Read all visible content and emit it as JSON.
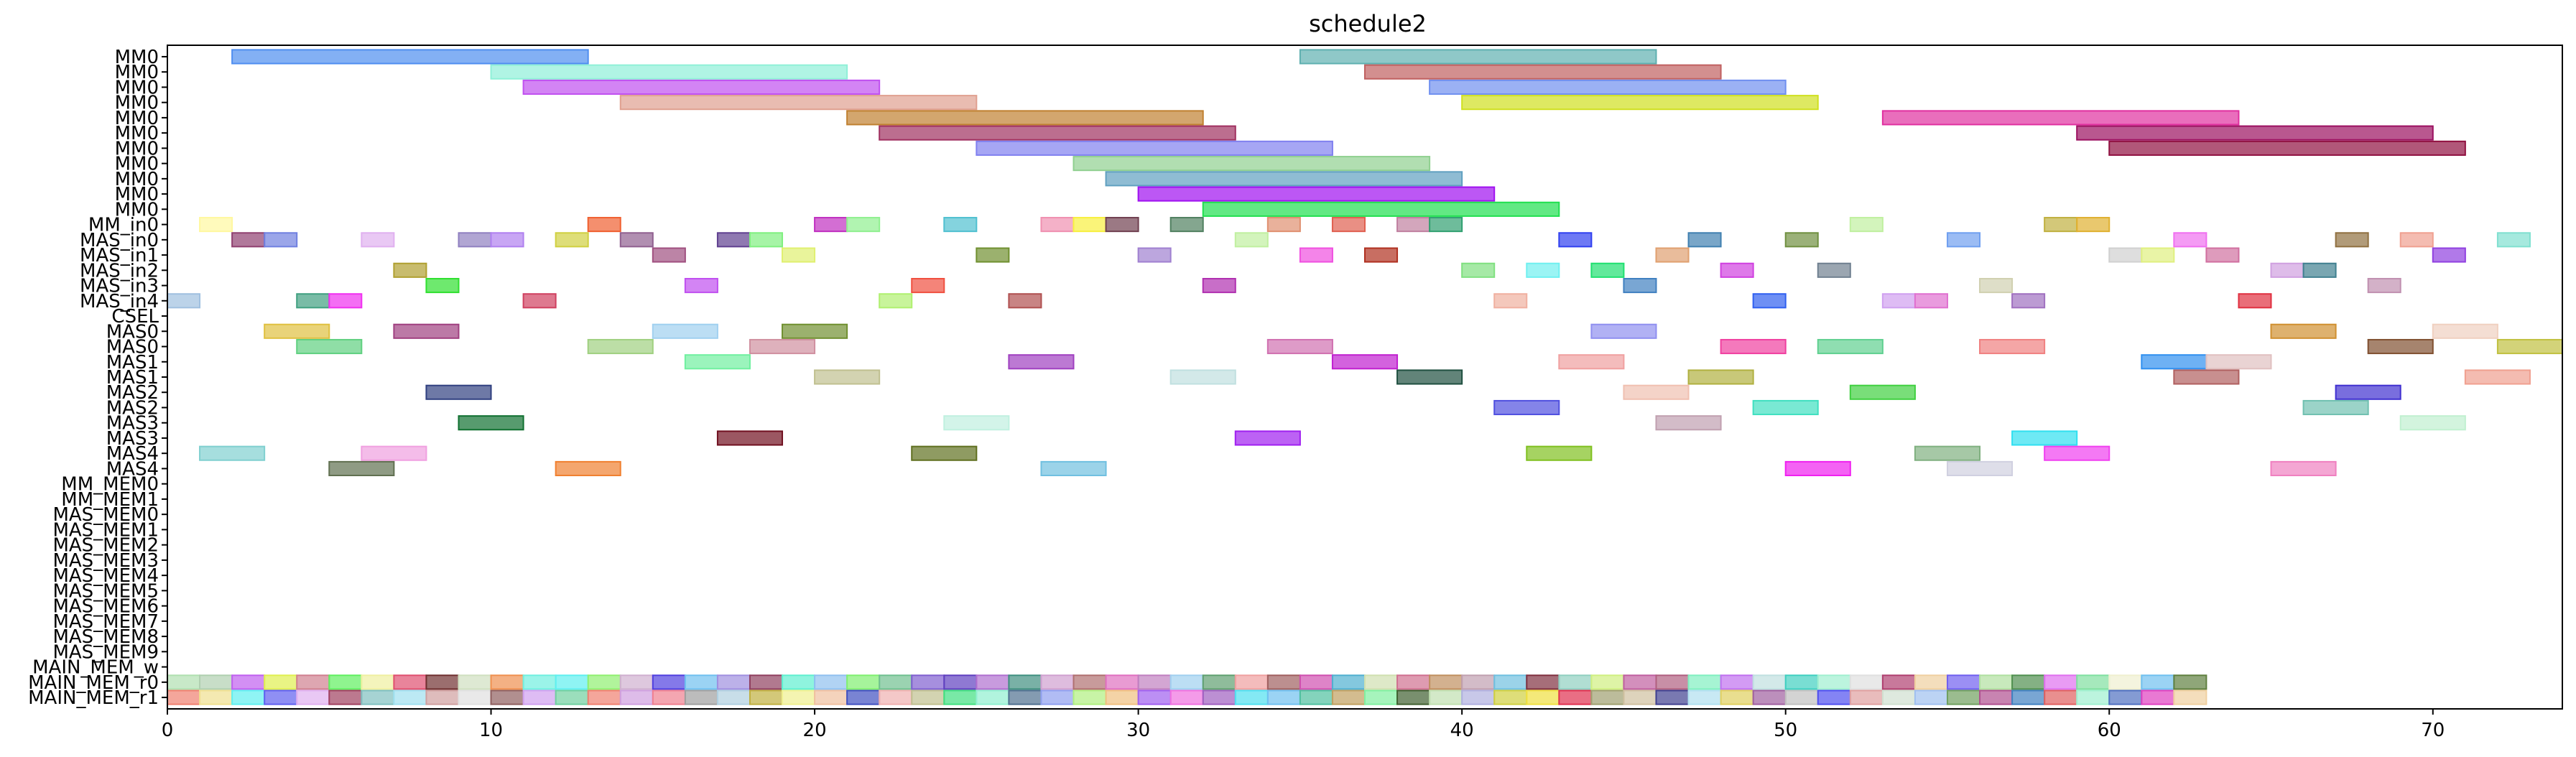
{
  "chart_data": {
    "type": "gantt",
    "title": "schedule2",
    "xlim": [
      0,
      74
    ],
    "x_ticks": [
      0,
      10,
      20,
      30,
      40,
      50,
      60,
      70
    ],
    "grid": false,
    "legend": "none",
    "lanes": [
      "MM0",
      "MM0",
      "MM0",
      "MM0",
      "MM0",
      "MM0",
      "MM0",
      "MM0",
      "MM0",
      "MM0",
      "MM0",
      "MM_in0",
      "MAS_in0",
      "MAS_in1",
      "MAS_in2",
      "MAS_in3",
      "MAS_in4",
      "CSEL",
      "MAS0",
      "MAS0",
      "MAS1",
      "MAS1",
      "MAS2",
      "MAS2",
      "MAS3",
      "MAS3",
      "MAS4",
      "MAS4",
      "MM_MEM0",
      "MM_MEM1",
      "MAS_MEM0",
      "MAS_MEM1",
      "MAS_MEM2",
      "MAS_MEM3",
      "MAS_MEM4",
      "MAS_MEM5",
      "MAS_MEM6",
      "MAS_MEM7",
      "MAS_MEM8",
      "MAS_MEM9",
      "MAIN_MEM_w",
      "MAIN_MEM_r0",
      "MAIN_MEM_r1"
    ],
    "tasks": [
      {
        "lane": 0,
        "start": 2,
        "end": 13,
        "color": "#4f8ef0"
      },
      {
        "lane": 0,
        "start": 35,
        "end": 46,
        "color": "#5fb0b0"
      },
      {
        "lane": 1,
        "start": 10,
        "end": 21,
        "color": "#8ff0d8"
      },
      {
        "lane": 1,
        "start": 37,
        "end": 48,
        "color": "#c06060"
      },
      {
        "lane": 2,
        "start": 11,
        "end": 22,
        "color": "#c050f0"
      },
      {
        "lane": 2,
        "start": 39,
        "end": 50,
        "color": "#7090f0"
      },
      {
        "lane": 3,
        "start": 14,
        "end": 25,
        "color": "#e0a090"
      },
      {
        "lane": 3,
        "start": 40,
        "end": 51,
        "color": "#d0e020"
      },
      {
        "lane": 4,
        "start": 21,
        "end": 32,
        "color": "#c08030"
      },
      {
        "lane": 4,
        "start": 53,
        "end": 64,
        "color": "#e030a0"
      },
      {
        "lane": 5,
        "start": 22,
        "end": 33,
        "color": "#a03060"
      },
      {
        "lane": 5,
        "start": 59,
        "end": 70,
        "color": "#9b1060"
      },
      {
        "lane": 6,
        "start": 25,
        "end": 36,
        "color": "#8080f0"
      },
      {
        "lane": 6,
        "start": 60,
        "end": 71,
        "color": "#901040"
      },
      {
        "lane": 7,
        "start": 28,
        "end": 39,
        "color": "#90d090"
      },
      {
        "lane": 8,
        "start": 29,
        "end": 40,
        "color": "#60a0c0"
      },
      {
        "lane": 9,
        "start": 30,
        "end": 41,
        "color": "#a010f0"
      },
      {
        "lane": 10,
        "start": 32,
        "end": 43,
        "color": "#20e050"
      },
      {
        "lane": 11,
        "start": 1,
        "end": 2,
        "color": "#fff8a0"
      },
      {
        "lane": 11,
        "start": 13,
        "end": 14,
        "color": "#f06030"
      },
      {
        "lane": 11,
        "start": 20,
        "end": 21,
        "color": "#c030c0"
      },
      {
        "lane": 11,
        "start": 21,
        "end": 22,
        "color": "#90f090"
      },
      {
        "lane": 11,
        "start": 24,
        "end": 25,
        "color": "#50c0d0"
      },
      {
        "lane": 11,
        "start": 27,
        "end": 28,
        "color": "#f090b0"
      },
      {
        "lane": 11,
        "start": 28,
        "end": 29,
        "color": "#f8f040"
      },
      {
        "lane": 11,
        "start": 29,
        "end": 30,
        "color": "#704050"
      },
      {
        "lane": 11,
        "start": 31,
        "end": 32,
        "color": "#508060"
      },
      {
        "lane": 11,
        "start": 34,
        "end": 35,
        "color": "#e09070"
      },
      {
        "lane": 11,
        "start": 36,
        "end": 37,
        "color": "#e06050"
      },
      {
        "lane": 11,
        "start": 38,
        "end": 39,
        "color": "#c080a0"
      },
      {
        "lane": 11,
        "start": 39,
        "end": 40,
        "color": "#30a070"
      },
      {
        "lane": 11,
        "start": 52,
        "end": 53,
        "color": "#c0f0a0"
      },
      {
        "lane": 11,
        "start": 58,
        "end": 59,
        "color": "#c0b040"
      },
      {
        "lane": 11,
        "start": 59,
        "end": 60,
        "color": "#e0b030"
      },
      {
        "lane": 12,
        "start": 2,
        "end": 3,
        "color": "#904070"
      },
      {
        "lane": 12,
        "start": 3,
        "end": 4,
        "color": "#7080e0"
      },
      {
        "lane": 12,
        "start": 6,
        "end": 7,
        "color": "#e0b0f0"
      },
      {
        "lane": 12,
        "start": 9,
        "end": 10,
        "color": "#9080c0"
      },
      {
        "lane": 12,
        "start": 10,
        "end": 11,
        "color": "#b080f0"
      },
      {
        "lane": 12,
        "start": 12,
        "end": 13,
        "color": "#d0d040"
      },
      {
        "lane": 12,
        "start": 14,
        "end": 15,
        "color": "#906090"
      },
      {
        "lane": 12,
        "start": 17,
        "end": 18,
        "color": "#604090"
      },
      {
        "lane": 12,
        "start": 18,
        "end": 19,
        "color": "#80f080"
      },
      {
        "lane": 12,
        "start": 33,
        "end": 34,
        "color": "#c0f0a0"
      },
      {
        "lane": 12,
        "start": 43,
        "end": 44,
        "color": "#3040f0"
      },
      {
        "lane": 12,
        "start": 47,
        "end": 48,
        "color": "#4080b0"
      },
      {
        "lane": 12,
        "start": 50,
        "end": 51,
        "color": "#709040"
      },
      {
        "lane": 12,
        "start": 55,
        "end": 56,
        "color": "#70a0f0"
      },
      {
        "lane": 12,
        "start": 62,
        "end": 63,
        "color": "#f070f0"
      },
      {
        "lane": 12,
        "start": 67,
        "end": 68,
        "color": "#907040"
      },
      {
        "lane": 12,
        "start": 69,
        "end": 70,
        "color": "#f0a090"
      },
      {
        "lane": 12,
        "start": 72,
        "end": 73,
        "color": "#80e0d0"
      },
      {
        "lane": 13,
        "start": 15,
        "end": 16,
        "color": "#a05080"
      },
      {
        "lane": 13,
        "start": 19,
        "end": 20,
        "color": "#e0f070"
      },
      {
        "lane": 13,
        "start": 25,
        "end": 26,
        "color": "#709030"
      },
      {
        "lane": 13,
        "start": 30,
        "end": 31,
        "color": "#a080d0"
      },
      {
        "lane": 13,
        "start": 35,
        "end": 36,
        "color": "#f050e0"
      },
      {
        "lane": 13,
        "start": 37,
        "end": 38,
        "color": "#b03020"
      },
      {
        "lane": 13,
        "start": 46,
        "end": 47,
        "color": "#e0a070"
      },
      {
        "lane": 13,
        "start": 60,
        "end": 61,
        "color": "#d0d0d0"
      },
      {
        "lane": 13,
        "start": 61,
        "end": 62,
        "color": "#e0f080"
      },
      {
        "lane": 13,
        "start": 63,
        "end": 64,
        "color": "#d070a0"
      },
      {
        "lane": 13,
        "start": 70,
        "end": 71,
        "color": "#9040e0"
      },
      {
        "lane": 14,
        "start": 7,
        "end": 8,
        "color": "#b0a030"
      },
      {
        "lane": 14,
        "start": 40,
        "end": 41,
        "color": "#80e080"
      },
      {
        "lane": 14,
        "start": 42,
        "end": 43,
        "color": "#70f0f0"
      },
      {
        "lane": 14,
        "start": 44,
        "end": 45,
        "color": "#20e070"
      },
      {
        "lane": 14,
        "start": 48,
        "end": 49,
        "color": "#d040e0"
      },
      {
        "lane": 14,
        "start": 51,
        "end": 52,
        "color": "#708090"
      },
      {
        "lane": 14,
        "start": 65,
        "end": 66,
        "color": "#d0a0e0"
      },
      {
        "lane": 14,
        "start": 66,
        "end": 67,
        "color": "#408090"
      },
      {
        "lane": 15,
        "start": 8,
        "end": 9,
        "color": "#30e030"
      },
      {
        "lane": 15,
        "start": 16,
        "end": 17,
        "color": "#c050f0"
      },
      {
        "lane": 15,
        "start": 23,
        "end": 24,
        "color": "#f05040"
      },
      {
        "lane": 15,
        "start": 32,
        "end": 33,
        "color": "#b030b0"
      },
      {
        "lane": 15,
        "start": 45,
        "end": 46,
        "color": "#4080c0"
      },
      {
        "lane": 15,
        "start": 56,
        "end": 57,
        "color": "#d0d0b0"
      },
      {
        "lane": 15,
        "start": 68,
        "end": 69,
        "color": "#c090b0"
      },
      {
        "lane": 16,
        "start": 0,
        "end": 1,
        "color": "#a0c0e0"
      },
      {
        "lane": 16,
        "start": 4,
        "end": 5,
        "color": "#40a080"
      },
      {
        "lane": 16,
        "start": 5,
        "end": 6,
        "color": "#f030f0"
      },
      {
        "lane": 16,
        "start": 11,
        "end": 12,
        "color": "#d04060"
      },
      {
        "lane": 16,
        "start": 22,
        "end": 23,
        "color": "#b0f070"
      },
      {
        "lane": 16,
        "start": 26,
        "end": 27,
        "color": "#b05050"
      },
      {
        "lane": 16,
        "start": 41,
        "end": 42,
        "color": "#f0b0a0"
      },
      {
        "lane": 16,
        "start": 49,
        "end": 50,
        "color": "#3060f0"
      },
      {
        "lane": 16,
        "start": 53,
        "end": 54,
        "color": "#d0a0f0"
      },
      {
        "lane": 16,
        "start": 54,
        "end": 55,
        "color": "#e070d0"
      },
      {
        "lane": 16,
        "start": 57,
        "end": 58,
        "color": "#a070c0"
      },
      {
        "lane": 16,
        "start": 64,
        "end": 65,
        "color": "#e03040"
      },
      {
        "lane": 18,
        "start": 3,
        "end": 5,
        "color": "#e0c040"
      },
      {
        "lane": 18,
        "start": 7,
        "end": 9,
        "color": "#a04080"
      },
      {
        "lane": 18,
        "start": 15,
        "end": 17,
        "color": "#a0d0f0"
      },
      {
        "lane": 18,
        "start": 19,
        "end": 21,
        "color": "#709030"
      },
      {
        "lane": 18,
        "start": 44,
        "end": 46,
        "color": "#9090f0"
      },
      {
        "lane": 18,
        "start": 65,
        "end": 67,
        "color": "#d09030"
      },
      {
        "lane": 18,
        "start": 70,
        "end": 72,
        "color": "#f0d0c0"
      },
      {
        "lane": 19,
        "start": 4,
        "end": 6,
        "color": "#60d080"
      },
      {
        "lane": 19,
        "start": 13,
        "end": 15,
        "color": "#a0d080"
      },
      {
        "lane": 19,
        "start": 18,
        "end": 20,
        "color": "#d090a0"
      },
      {
        "lane": 19,
        "start": 34,
        "end": 36,
        "color": "#d070b0"
      },
      {
        "lane": 19,
        "start": 48,
        "end": 50,
        "color": "#f040a0"
      },
      {
        "lane": 19,
        "start": 51,
        "end": 53,
        "color": "#60d090"
      },
      {
        "lane": 19,
        "start": 56,
        "end": 58,
        "color": "#f08080"
      },
      {
        "lane": 19,
        "start": 68,
        "end": 70,
        "color": "#805030"
      },
      {
        "lane": 19,
        "start": 72,
        "end": 74,
        "color": "#c0c040"
      },
      {
        "lane": 20,
        "start": 16,
        "end": 18,
        "color": "#70f0a0"
      },
      {
        "lane": 20,
        "start": 26,
        "end": 28,
        "color": "#a040c0"
      },
      {
        "lane": 20,
        "start": 36,
        "end": 38,
        "color": "#c020d0"
      },
      {
        "lane": 20,
        "start": 43,
        "end": 45,
        "color": "#f0a0a0"
      },
      {
        "lane": 20,
        "start": 61,
        "end": 63,
        "color": "#3090f0"
      },
      {
        "lane": 20,
        "start": 63,
        "end": 65,
        "color": "#e0c0c0"
      },
      {
        "lane": 21,
        "start": 20,
        "end": 22,
        "color": "#c0c090"
      },
      {
        "lane": 21,
        "start": 31,
        "end": 33,
        "color": "#c0e0e0"
      },
      {
        "lane": 21,
        "start": 38,
        "end": 40,
        "color": "#205040"
      },
      {
        "lane": 21,
        "start": 47,
        "end": 49,
        "color": "#b0b040"
      },
      {
        "lane": 21,
        "start": 62,
        "end": 64,
        "color": "#b06060"
      },
      {
        "lane": 21,
        "start": 71,
        "end": 73,
        "color": "#f0a090"
      },
      {
        "lane": 22,
        "start": 8,
        "end": 10,
        "color": "#304080"
      },
      {
        "lane": 22,
        "start": 45,
        "end": 47,
        "color": "#f0c0b0"
      },
      {
        "lane": 22,
        "start": 52,
        "end": 54,
        "color": "#40d040"
      },
      {
        "lane": 22,
        "start": 67,
        "end": 69,
        "color": "#4030d0"
      },
      {
        "lane": 23,
        "start": 41,
        "end": 43,
        "color": "#5050e0"
      },
      {
        "lane": 23,
        "start": 49,
        "end": 51,
        "color": "#40e0c0"
      },
      {
        "lane": 23,
        "start": 66,
        "end": 68,
        "color": "#70c0b0"
      },
      {
        "lane": 24,
        "start": 9,
        "end": 11,
        "color": "#107030"
      },
      {
        "lane": 24,
        "start": 24,
        "end": 26,
        "color": "#c0f0e0"
      },
      {
        "lane": 24,
        "start": 46,
        "end": 48,
        "color": "#c0a0b0"
      },
      {
        "lane": 24,
        "start": 69,
        "end": 71,
        "color": "#c0f0d0"
      },
      {
        "lane": 25,
        "start": 17,
        "end": 19,
        "color": "#701020"
      },
      {
        "lane": 25,
        "start": 33,
        "end": 35,
        "color": "#a020f0"
      },
      {
        "lane": 25,
        "start": 57,
        "end": 59,
        "color": "#30e0f0"
      },
      {
        "lane": 26,
        "start": 1,
        "end": 3,
        "color": "#80d0d0"
      },
      {
        "lane": 26,
        "start": 6,
        "end": 8,
        "color": "#f0a0e0"
      },
      {
        "lane": 26,
        "start": 23,
        "end": 25,
        "color": "#607020"
      },
      {
        "lane": 26,
        "start": 42,
        "end": 44,
        "color": "#80c020"
      },
      {
        "lane": 26,
        "start": 54,
        "end": 56,
        "color": "#80b080"
      },
      {
        "lane": 26,
        "start": 58,
        "end": 60,
        "color": "#f040f0"
      },
      {
        "lane": 27,
        "start": 5,
        "end": 7,
        "color": "#607050"
      },
      {
        "lane": 27,
        "start": 12,
        "end": 14,
        "color": "#f08030"
      },
      {
        "lane": 27,
        "start": 27,
        "end": 29,
        "color": "#70c0e0"
      },
      {
        "lane": 27,
        "start": 50,
        "end": 52,
        "color": "#f020f0"
      },
      {
        "lane": 27,
        "start": 55,
        "end": 57,
        "color": "#d0d0e0"
      },
      {
        "lane": 27,
        "start": 65,
        "end": 67,
        "color": "#f080c0"
      }
    ],
    "main_mem_r0_colors": [
      "#b0e0b0",
      "#b0d0b0",
      "#c060f0",
      "#e0f050",
      "#d08090",
      "#60f060",
      "#f0f0a0",
      "#e05070",
      "#703030",
      "#d0e0c0",
      "#f09050",
      "#70f0e0",
      "#60f0f0",
      "#90f070",
      "#d0b0d0",
      "#5040e0",
      "#70c0f0",
      "#a090e0",
      "#904060",
      "#60f0d0",
      "#90c0f0",
      "#80f070",
      "#70c090",
      "#8060d0",
      "#6040c0",
      "#b070d0",
      "#409080",
      "#d0a0d0",
      "#b07070",
      "#e070c0",
      "#c080c0",
      "#a0d0f0",
      "#60a070",
      "#f0a0a0",
      "#a06060",
      "#d050b0",
      "#50b0d0",
      "#d0e0b0",
      "#d07090",
      "#c09060",
      "#c0a0b0",
      "#70c0e0",
      "#803040",
      "#90d0c0",
      "#d0f080",
      "#c060a0",
      "#b06080",
      "#80f0c0",
      "#c070f0",
      "#c0e0e0",
      "#40d0c0",
      "#a0f0d0",
      "#e0e0e0",
      "#b04070",
      "#f0d0a0",
      "#7060f0",
      "#b0e0a0",
      "#509050",
      "#e070f0",
      "#80e0a0",
      "#f0f0d0",
      "#70c0f0",
      "#608040"
    ],
    "main_mem_r1_colors": [
      "#f08070",
      "#f0e090",
      "#60f0f0",
      "#6060f0",
      "#e0b0f0",
      "#a04060",
      "#80c0c0",
      "#a0e0f0",
      "#d0a0a0",
      "#e0e0e0",
      "#906060",
      "#d0a0f0",
      "#70d0a0",
      "#f08070",
      "#d0a0e0",
      "#f08090",
      "#a0a0a0",
      "#b0d0e0",
      "#c0b040",
      "#f0f090",
      "#f0c0a0",
      "#4050c0",
      "#f0b0b0",
      "#c0c090",
      "#40e080",
      "#90f0d0",
      "#507090",
      "#90a0f0",
      "#b0f080",
      "#f0c080",
      "#a060f0",
      "#f070e0",
      "#a060c0",
      "#50e0f0",
      "#70c0f0",
      "#50c0a0",
      "#c0a060",
      "#80f0a0",
      "#406030",
      "#c0e0b0",
      "#b0b0e0",
      "#d0d040",
      "#f0e040",
      "#e03050",
      "#a0a070",
      "#d0c0a0",
      "#404090",
      "#b0e0f0",
      "#e0d060",
      "#a060a0",
      "#c0c0c0",
      "#5050f0",
      "#e0a0a0",
      "#d0e0d0",
      "#a0c0f0",
      "#70a060",
      "#b05090",
      "#4080c0",
      "#e06060",
      "#a0f0d0",
      "#5070c0",
      "#e040c0",
      "#f0d0a0"
    ]
  }
}
